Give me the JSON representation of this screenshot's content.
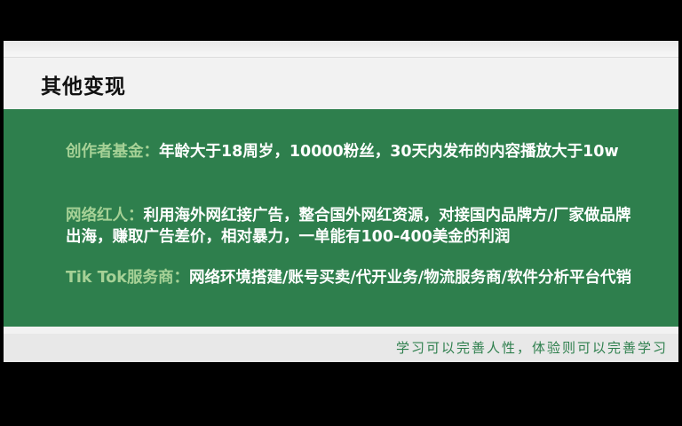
{
  "slide": {
    "title": "其他变现",
    "items": [
      {
        "key": "创作者基金：",
        "text": "年龄大于18周岁，10000粉丝，30天内发布的内容播放大于10w"
      },
      {
        "key": "网络红人：",
        "text": "利用海外网红接广告，整合国外网红资源，对接国内品牌方/厂家做品牌出海，赚取广告差价，相对暴力，一单能有100-400美金的利润"
      },
      {
        "key": "Tik Tok服务商：",
        "text": "网络环境搭建/账号买卖/代开业务/物流服务商/软件分析平台代销"
      }
    ],
    "motto": "学习可以完善人性，体验则可以完善学习"
  },
  "colors": {
    "panel": "#2e7f4d",
    "key_text": "#a6d196",
    "body_text": "#ffffff",
    "motto": "#2e7f4d"
  }
}
